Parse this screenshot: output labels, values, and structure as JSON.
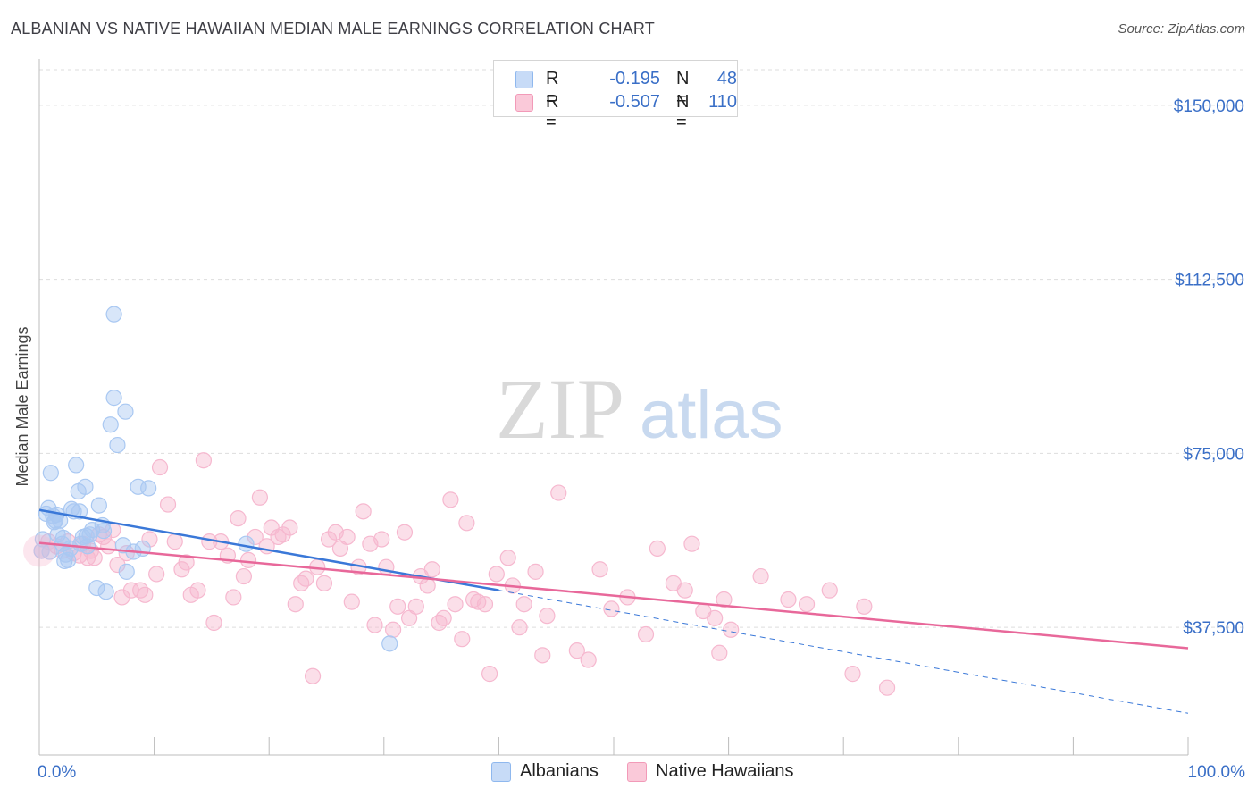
{
  "header": {
    "title": "ALBANIAN VS NATIVE HAWAIIAN MEDIAN MALE EARNINGS CORRELATION CHART",
    "source": "Source: ZipAtlas.com"
  },
  "watermark": {
    "zip": "ZIP",
    "atlas": "atlas"
  },
  "legend": {
    "rows": [
      {
        "r_label": "R =",
        "r_value": "-0.195",
        "n_label": "N =",
        "n_value": "48",
        "color": "#8fb8ee",
        "fill": "#c7dbf7"
      },
      {
        "r_label": "R =",
        "r_value": "-0.507",
        "n_label": "N =",
        "n_value": "110",
        "color": "#f29ab8",
        "fill": "#fac9d9"
      }
    ]
  },
  "bottom_legend": [
    {
      "label": "Albanians",
      "color": "#8fb8ee",
      "fill": "#c7dbf7"
    },
    {
      "label": "Native Hawaiians",
      "color": "#f29ab8",
      "fill": "#fac9d9"
    }
  ],
  "chart_data": {
    "type": "scatter",
    "title": "ALBANIAN VS NATIVE HAWAIIAN MEDIAN MALE EARNINGS CORRELATION CHART",
    "xlabel": "",
    "ylabel": "Median Male Earnings",
    "xlim": [
      0,
      100
    ],
    "ylim": [
      10000,
      160000
    ],
    "x_tick_labels": [
      "0.0%",
      "100.0%"
    ],
    "y_ticks": [
      37500,
      75000,
      112500,
      150000
    ],
    "y_tick_labels": [
      "$37,500",
      "$75,000",
      "$112,500",
      "$150,000"
    ],
    "grid": true,
    "series": [
      {
        "name": "Albanians",
        "color": "#3a78d8",
        "fill": "#a9c8f2",
        "trend": {
          "x0": 0,
          "y0": 62800,
          "x1": 40,
          "y1": 45500,
          "dash_to_x": 100,
          "dash_to_y": 19000
        },
        "points": [
          [
            0.3,
            56500
          ],
          [
            0.6,
            62000
          ],
          [
            0.8,
            63200
          ],
          [
            1.0,
            70800
          ],
          [
            1.2,
            61500
          ],
          [
            1.4,
            60500
          ],
          [
            1.6,
            57500
          ],
          [
            1.8,
            60500
          ],
          [
            2.0,
            55500
          ],
          [
            2.2,
            51800
          ],
          [
            2.3,
            53200
          ],
          [
            2.5,
            52000
          ],
          [
            2.8,
            63000
          ],
          [
            3.0,
            62500
          ],
          [
            3.2,
            72500
          ],
          [
            3.4,
            66800
          ],
          [
            3.6,
            55500
          ],
          [
            3.8,
            57000
          ],
          [
            4.0,
            67800
          ],
          [
            4.2,
            55000
          ],
          [
            4.4,
            57500
          ],
          [
            4.6,
            58500
          ],
          [
            5.0,
            46000
          ],
          [
            5.2,
            63800
          ],
          [
            5.5,
            59500
          ],
          [
            5.8,
            45200
          ],
          [
            6.2,
            81200
          ],
          [
            6.5,
            87000
          ],
          [
            6.8,
            76800
          ],
          [
            6.5,
            105000
          ],
          [
            7.3,
            55200
          ],
          [
            7.5,
            84000
          ],
          [
            7.6,
            49500
          ],
          [
            8.2,
            53800
          ],
          [
            8.6,
            67800
          ],
          [
            9.0,
            54500
          ],
          [
            9.5,
            67500
          ],
          [
            18.0,
            55500
          ],
          [
            30.5,
            34000
          ],
          [
            2.1,
            56800
          ],
          [
            1.5,
            61800
          ],
          [
            3.5,
            62500
          ],
          [
            5.6,
            58300
          ],
          [
            4.1,
            57200
          ],
          [
            0.9,
            53800
          ],
          [
            2.7,
            54500
          ],
          [
            1.3,
            60200
          ],
          [
            0.2,
            54000
          ]
        ]
      },
      {
        "name": "Native Hawaiians",
        "color": "#e8689a",
        "fill": "#f6b8cf",
        "trend": {
          "x0": 0,
          "y0": 55700,
          "x1": 100,
          "y1": 33000
        },
        "points": [
          [
            0.2,
            54000
          ],
          [
            0.8,
            56000
          ],
          [
            1.5,
            55000
          ],
          [
            2.0,
            54000
          ],
          [
            2.5,
            56000
          ],
          [
            3.0,
            53500
          ],
          [
            3.5,
            53000
          ],
          [
            3.8,
            55500
          ],
          [
            4.2,
            52500
          ],
          [
            4.5,
            54000
          ],
          [
            4.8,
            52500
          ],
          [
            5.2,
            57500
          ],
          [
            5.6,
            57000
          ],
          [
            6.0,
            55000
          ],
          [
            6.4,
            58500
          ],
          [
            6.8,
            51000
          ],
          [
            7.2,
            44000
          ],
          [
            7.6,
            53500
          ],
          [
            8.0,
            45500
          ],
          [
            8.8,
            45500
          ],
          [
            9.2,
            44500
          ],
          [
            9.6,
            56500
          ],
          [
            10.2,
            49000
          ],
          [
            10.5,
            72000
          ],
          [
            11.2,
            64000
          ],
          [
            11.8,
            56000
          ],
          [
            12.4,
            50000
          ],
          [
            12.8,
            51500
          ],
          [
            13.2,
            44500
          ],
          [
            13.8,
            45500
          ],
          [
            14.3,
            73500
          ],
          [
            14.8,
            56000
          ],
          [
            15.2,
            38500
          ],
          [
            15.8,
            56000
          ],
          [
            16.4,
            53000
          ],
          [
            16.9,
            44000
          ],
          [
            17.3,
            61000
          ],
          [
            17.8,
            48500
          ],
          [
            18.2,
            52000
          ],
          [
            18.8,
            57000
          ],
          [
            19.2,
            65500
          ],
          [
            19.8,
            55000
          ],
          [
            20.2,
            59000
          ],
          [
            20.8,
            57000
          ],
          [
            21.2,
            57500
          ],
          [
            21.8,
            59000
          ],
          [
            22.3,
            42500
          ],
          [
            22.8,
            47000
          ],
          [
            23.2,
            48000
          ],
          [
            23.8,
            27000
          ],
          [
            24.2,
            50500
          ],
          [
            24.8,
            47000
          ],
          [
            25.2,
            56500
          ],
          [
            25.8,
            58000
          ],
          [
            26.2,
            54500
          ],
          [
            26.8,
            57000
          ],
          [
            27.2,
            43000
          ],
          [
            27.8,
            50500
          ],
          [
            28.2,
            62500
          ],
          [
            28.8,
            55500
          ],
          [
            29.2,
            38000
          ],
          [
            29.8,
            56500
          ],
          [
            30.2,
            50500
          ],
          [
            30.8,
            37000
          ],
          [
            31.2,
            42000
          ],
          [
            31.8,
            58000
          ],
          [
            32.2,
            39500
          ],
          [
            32.8,
            42000
          ],
          [
            33.2,
            48500
          ],
          [
            33.8,
            46500
          ],
          [
            34.2,
            50000
          ],
          [
            34.8,
            38500
          ],
          [
            35.2,
            39500
          ],
          [
            35.8,
            65000
          ],
          [
            36.2,
            42500
          ],
          [
            36.8,
            35000
          ],
          [
            37.2,
            60000
          ],
          [
            37.8,
            43500
          ],
          [
            38.2,
            43000
          ],
          [
            38.8,
            42500
          ],
          [
            39.2,
            27500
          ],
          [
            40.8,
            52500
          ],
          [
            41.2,
            46500
          ],
          [
            41.8,
            37500
          ],
          [
            42.2,
            42500
          ],
          [
            43.2,
            49500
          ],
          [
            43.8,
            31500
          ],
          [
            44.2,
            40000
          ],
          [
            45.2,
            66500
          ],
          [
            46.8,
            32500
          ],
          [
            47.8,
            30500
          ],
          [
            48.8,
            50000
          ],
          [
            49.8,
            41500
          ],
          [
            51.2,
            44000
          ],
          [
            52.8,
            36000
          ],
          [
            53.8,
            54500
          ],
          [
            55.2,
            47000
          ],
          [
            56.8,
            55500
          ],
          [
            57.8,
            41000
          ],
          [
            58.8,
            39500
          ],
          [
            59.2,
            32000
          ],
          [
            60.2,
            37000
          ],
          [
            62.8,
            48500
          ],
          [
            65.2,
            43500
          ],
          [
            66.8,
            42500
          ],
          [
            68.8,
            45500
          ],
          [
            70.8,
            27500
          ],
          [
            71.8,
            42000
          ],
          [
            73.8,
            24500
          ],
          [
            39.8,
            49000
          ],
          [
            56.2,
            45500
          ],
          [
            59.6,
            43500
          ]
        ]
      }
    ]
  }
}
